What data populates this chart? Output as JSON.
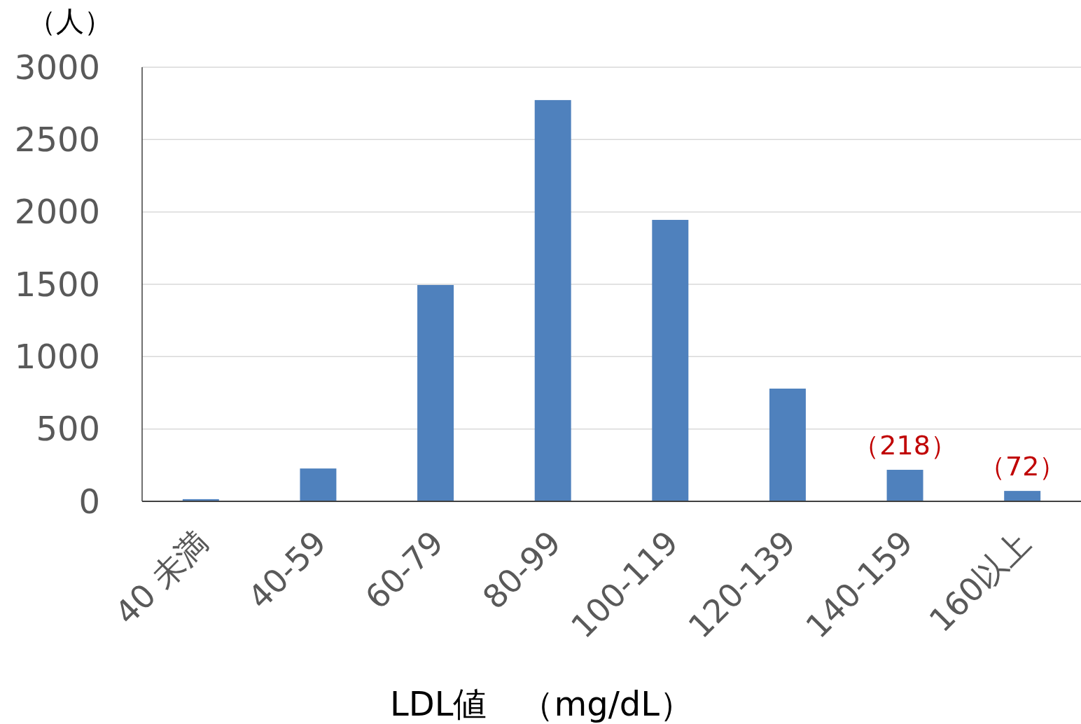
{
  "chart_data": {
    "type": "bar",
    "ylabel": "（人）",
    "xlabel": "LDL値　（mg/dL）",
    "categories": [
      "40 未満",
      "40-59",
      "60-79",
      "80-99",
      "100-119",
      "120-139",
      "140-159",
      "160以上"
    ],
    "values": [
      15,
      227,
      1495,
      2773,
      1945,
      779,
      218,
      72
    ],
    "value_labels": [
      null,
      null,
      null,
      null,
      null,
      null,
      "（218）",
      "（72）"
    ],
    "color": "#4f81bd",
    "ylim": [
      0,
      3000
    ],
    "yticks": [
      0,
      500,
      1000,
      1500,
      2000,
      2500,
      3000
    ],
    "grid": "y"
  }
}
